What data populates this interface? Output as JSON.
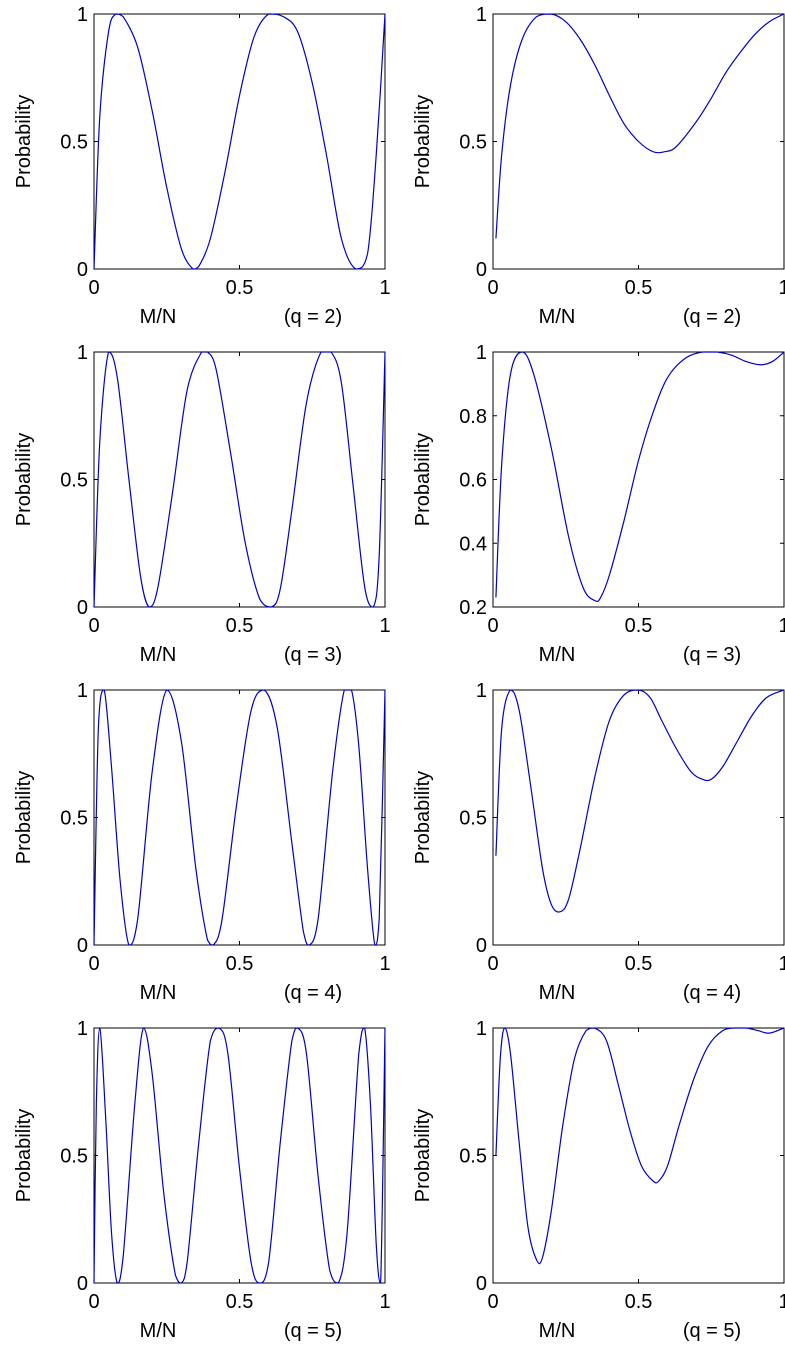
{
  "figure": {
    "line_color": "#0000cc",
    "axis_color": "#000000",
    "background": "#ffffff"
  },
  "chart_data": [
    {
      "type": "line",
      "title": "",
      "ylabel": "Probability",
      "xlabel": "M/N",
      "annotation": "(q = 2)",
      "xlim": [
        0,
        1
      ],
      "ylim": [
        0,
        1
      ],
      "xticks": [
        0,
        0.5,
        1
      ],
      "xtick_labels": [
        "0",
        "0.5",
        "1"
      ],
      "yticks": [
        0,
        0.5,
        1
      ],
      "ytick_labels": [
        "0",
        "0.5",
        "1"
      ],
      "grid": false,
      "series": [
        {
          "x": [
            0,
            0.02,
            0.05,
            0.075,
            0.1,
            0.15,
            0.2,
            0.25,
            0.3,
            0.34,
            0.36,
            0.4,
            0.45,
            0.5,
            0.55,
            0.6,
            0.65,
            0.7,
            0.75,
            0.8,
            0.85,
            0.9,
            0.94,
            0.97,
            1.0
          ],
          "y": [
            0.0,
            0.6,
            0.93,
            1.0,
            0.99,
            0.87,
            0.62,
            0.32,
            0.08,
            0.0,
            0.01,
            0.12,
            0.38,
            0.68,
            0.91,
            1.0,
            0.99,
            0.93,
            0.73,
            0.44,
            0.12,
            0.0,
            0.06,
            0.45,
            1.0
          ]
        }
      ]
    },
    {
      "type": "line",
      "title": "",
      "ylabel": "Probability",
      "xlabel": "M/N",
      "annotation": "(q = 2)",
      "xlim": [
        0,
        1
      ],
      "ylim": [
        0,
        1
      ],
      "xticks": [
        0,
        0.5,
        1
      ],
      "xtick_labels": [
        "0",
        "0.5",
        "1"
      ],
      "yticks": [
        0,
        0.5,
        1
      ],
      "ytick_labels": [
        "0",
        "0.5",
        "1"
      ],
      "grid": false,
      "series": [
        {
          "x": [
            0.01,
            0.03,
            0.06,
            0.1,
            0.15,
            0.2,
            0.25,
            0.3,
            0.35,
            0.4,
            0.45,
            0.5,
            0.55,
            0.59,
            0.63,
            0.7,
            0.75,
            0.8,
            0.85,
            0.9,
            0.95,
            1.0
          ],
          "y": [
            0.12,
            0.45,
            0.72,
            0.9,
            0.99,
            1.0,
            0.97,
            0.9,
            0.8,
            0.68,
            0.57,
            0.5,
            0.46,
            0.46,
            0.48,
            0.58,
            0.67,
            0.77,
            0.85,
            0.92,
            0.97,
            1.0
          ]
        }
      ]
    },
    {
      "type": "line",
      "title": "",
      "ylabel": "Probability",
      "xlabel": "M/N",
      "annotation": "(q = 3)",
      "xlim": [
        0,
        1
      ],
      "ylim": [
        0,
        1
      ],
      "xticks": [
        0,
        0.5,
        1
      ],
      "xtick_labels": [
        "0",
        "0.5",
        "1"
      ],
      "yticks": [
        0,
        0.5,
        1
      ],
      "ytick_labels": [
        "0",
        "0.5",
        "1"
      ],
      "grid": false,
      "series": [
        {
          "x": [
            0,
            0.02,
            0.05,
            0.08,
            0.12,
            0.16,
            0.19,
            0.22,
            0.27,
            0.32,
            0.37,
            0.39,
            0.42,
            0.47,
            0.52,
            0.57,
            0.61,
            0.64,
            0.68,
            0.73,
            0.78,
            0.815,
            0.85,
            0.89,
            0.93,
            0.96,
            0.98,
            1.0
          ],
          "y": [
            0.0,
            0.65,
            1.0,
            0.9,
            0.5,
            0.12,
            0.0,
            0.08,
            0.45,
            0.85,
            1.0,
            1.0,
            0.93,
            0.6,
            0.25,
            0.03,
            0.0,
            0.07,
            0.38,
            0.8,
            1.0,
            1.0,
            0.88,
            0.48,
            0.08,
            0.0,
            0.2,
            1.0
          ]
        }
      ]
    },
    {
      "type": "line",
      "title": "",
      "ylabel": "Probability",
      "xlabel": "M/N",
      "annotation": "(q = 3)",
      "xlim": [
        0,
        1
      ],
      "ylim": [
        0.2,
        1
      ],
      "xticks": [
        0,
        0.5,
        1
      ],
      "xtick_labels": [
        "0",
        "0.5",
        "1"
      ],
      "yticks": [
        0.2,
        0.4,
        0.6,
        0.8,
        1
      ],
      "ytick_labels": [
        "0.2",
        "0.4",
        "0.6",
        "0.8",
        "1"
      ],
      "grid": false,
      "series": [
        {
          "x": [
            0.01,
            0.03,
            0.06,
            0.1,
            0.14,
            0.2,
            0.26,
            0.31,
            0.35,
            0.37,
            0.4,
            0.45,
            0.5,
            0.55,
            0.6,
            0.66,
            0.72,
            0.77,
            0.82,
            0.87,
            0.92,
            0.96,
            1.0
          ],
          "y": [
            0.23,
            0.65,
            0.93,
            1.0,
            0.93,
            0.7,
            0.42,
            0.26,
            0.22,
            0.23,
            0.3,
            0.47,
            0.66,
            0.81,
            0.92,
            0.98,
            1.0,
            1.0,
            0.99,
            0.97,
            0.96,
            0.97,
            1.0
          ]
        }
      ]
    },
    {
      "type": "line",
      "title": "",
      "ylabel": "Probability",
      "xlabel": "M/N",
      "annotation": "(q = 4)",
      "xlim": [
        0,
        1
      ],
      "ylim": [
        0,
        1
      ],
      "xticks": [
        0,
        0.5,
        1
      ],
      "xtick_labels": [
        "0",
        "0.5",
        "1"
      ],
      "yticks": [
        0,
        0.5,
        1
      ],
      "ytick_labels": [
        "0",
        "0.5",
        "1"
      ],
      "grid": false,
      "series": [
        {
          "x": [
            0,
            0.015,
            0.035,
            0.06,
            0.09,
            0.12,
            0.15,
            0.2,
            0.25,
            0.3,
            0.35,
            0.39,
            0.41,
            0.44,
            0.49,
            0.54,
            0.585,
            0.63,
            0.68,
            0.72,
            0.74,
            0.77,
            0.82,
            0.86,
            0.885,
            0.91,
            0.94,
            0.965,
            0.98,
            1.0
          ],
          "y": [
            0.0,
            0.85,
            1.0,
            0.7,
            0.25,
            0.0,
            0.1,
            0.68,
            1.0,
            0.8,
            0.3,
            0.02,
            0.0,
            0.1,
            0.55,
            0.92,
            1.0,
            0.85,
            0.4,
            0.05,
            0.0,
            0.1,
            0.68,
            1.0,
            1.0,
            0.78,
            0.3,
            0.0,
            0.1,
            1.0
          ]
        }
      ]
    },
    {
      "type": "line",
      "title": "",
      "ylabel": "Probability",
      "xlabel": "M/N",
      "annotation": "(q = 4)",
      "xlim": [
        0,
        1
      ],
      "ylim": [
        0,
        1
      ],
      "xticks": [
        0,
        0.5,
        1
      ],
      "xtick_labels": [
        "0",
        "0.5",
        "1"
      ],
      "yticks": [
        0,
        0.5,
        1
      ],
      "ytick_labels": [
        "0",
        "0.5",
        "1"
      ],
      "grid": false,
      "series": [
        {
          "x": [
            0.01,
            0.03,
            0.06,
            0.09,
            0.13,
            0.17,
            0.2,
            0.23,
            0.26,
            0.3,
            0.35,
            0.4,
            0.45,
            0.5,
            0.54,
            0.58,
            0.63,
            0.68,
            0.72,
            0.75,
            0.79,
            0.84,
            0.89,
            0.94,
            1.0
          ],
          "y": [
            0.35,
            0.85,
            1.0,
            0.92,
            0.62,
            0.3,
            0.16,
            0.13,
            0.18,
            0.38,
            0.66,
            0.88,
            0.98,
            1.0,
            0.97,
            0.88,
            0.77,
            0.68,
            0.65,
            0.65,
            0.7,
            0.8,
            0.9,
            0.97,
            1.0
          ]
        }
      ]
    },
    {
      "type": "line",
      "title": "",
      "ylabel": "Probability",
      "xlabel": "M/N",
      "annotation": "(q = 5)",
      "xlim": [
        0,
        1
      ],
      "ylim": [
        0,
        1
      ],
      "xticks": [
        0,
        0.5,
        1
      ],
      "xtick_labels": [
        "0",
        "0.5",
        "1"
      ],
      "yticks": [
        0,
        0.5,
        1
      ],
      "ytick_labels": [
        "0",
        "0.5",
        "1"
      ],
      "grid": false,
      "series": [
        {
          "x": [
            0,
            0.008,
            0.02,
            0.04,
            0.06,
            0.08,
            0.1,
            0.14,
            0.17,
            0.2,
            0.24,
            0.28,
            0.3,
            0.32,
            0.36,
            0.4,
            0.43,
            0.46,
            0.5,
            0.54,
            0.57,
            0.6,
            0.64,
            0.68,
            0.7,
            0.73,
            0.77,
            0.81,
            0.84,
            0.87,
            0.91,
            0.93,
            0.95,
            0.97,
            0.985,
            1.0
          ],
          "y": [
            0.0,
            0.7,
            1.0,
            0.65,
            0.2,
            0.0,
            0.1,
            0.7,
            1.0,
            0.82,
            0.35,
            0.03,
            0.0,
            0.08,
            0.55,
            0.95,
            1.0,
            0.9,
            0.45,
            0.08,
            0.0,
            0.08,
            0.55,
            0.95,
            1.0,
            0.9,
            0.42,
            0.05,
            0.0,
            0.2,
            0.9,
            1.0,
            0.7,
            0.15,
            0.0,
            1.0
          ]
        }
      ]
    },
    {
      "type": "line",
      "title": "",
      "ylabel": "Probability",
      "xlabel": "M/N",
      "annotation": "(q = 5)",
      "xlim": [
        0,
        1
      ],
      "ylim": [
        0,
        1
      ],
      "xticks": [
        0,
        0.5,
        1
      ],
      "xtick_labels": [
        "0",
        "0.5",
        "1"
      ],
      "yticks": [
        0,
        0.5,
        1
      ],
      "ytick_labels": [
        "0",
        "0.5",
        "1"
      ],
      "grid": false,
      "series": [
        {
          "x": [
            0.01,
            0.025,
            0.04,
            0.06,
            0.09,
            0.12,
            0.15,
            0.17,
            0.2,
            0.24,
            0.28,
            0.32,
            0.35,
            0.39,
            0.43,
            0.47,
            0.51,
            0.55,
            0.57,
            0.6,
            0.64,
            0.69,
            0.74,
            0.79,
            0.83,
            0.87,
            0.91,
            0.95,
            1.0
          ],
          "y": [
            0.5,
            0.88,
            1.0,
            0.9,
            0.55,
            0.22,
            0.09,
            0.1,
            0.28,
            0.62,
            0.88,
            0.99,
            1.0,
            0.95,
            0.78,
            0.6,
            0.46,
            0.4,
            0.4,
            0.46,
            0.62,
            0.8,
            0.93,
            0.99,
            1.0,
            1.0,
            0.99,
            0.98,
            1.0
          ]
        }
      ]
    }
  ]
}
